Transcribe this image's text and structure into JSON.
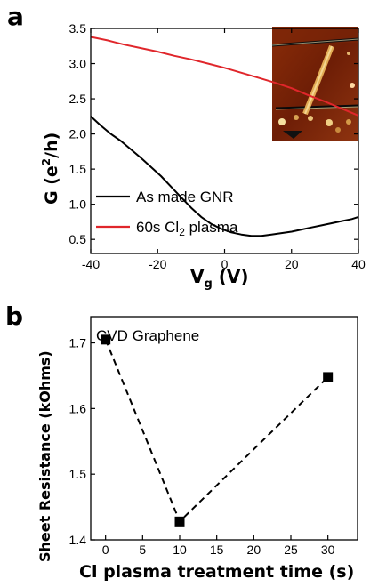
{
  "chart_data": [
    {
      "type": "line",
      "panel_label": "a",
      "xlabel": "V",
      "xlabel_sub": "g",
      "xlabel_unit": " (V)",
      "ylabel_main": "G (e",
      "ylabel_sup": "2",
      "ylabel_end": "/h)",
      "xlim": [
        -40,
        40
      ],
      "ylim": [
        0.3,
        3.5
      ],
      "xticks": [
        -40,
        -20,
        0,
        20,
        40
      ],
      "yticks": [
        0.5,
        1.0,
        1.5,
        2.0,
        2.5,
        3.0,
        3.5
      ],
      "grid": false,
      "legend_position": "bottom-left",
      "inset": "AFM image of graphene nanoribbon",
      "series": [
        {
          "name": "As made GNR",
          "color": "#000000",
          "x": [
            -40,
            -37,
            -34,
            -31,
            -28,
            -25,
            -22,
            -19,
            -16,
            -13,
            -10,
            -7,
            -4,
            -1,
            2,
            5,
            8,
            11,
            14,
            17,
            20,
            23,
            26,
            29,
            32,
            35,
            38,
            40
          ],
          "y": [
            2.25,
            2.12,
            2.0,
            1.9,
            1.78,
            1.66,
            1.53,
            1.4,
            1.25,
            1.1,
            0.95,
            0.82,
            0.72,
            0.65,
            0.6,
            0.57,
            0.55,
            0.55,
            0.57,
            0.59,
            0.61,
            0.64,
            0.67,
            0.7,
            0.73,
            0.76,
            0.79,
            0.82
          ]
        },
        {
          "name_main": "60s Cl",
          "name_sub": "2",
          "name_end": " plasma",
          "color": "#e0262b",
          "x": [
            -40,
            -35,
            -30,
            -25,
            -20,
            -15,
            -10,
            -5,
            0,
            5,
            10,
            15,
            20,
            25,
            30,
            35,
            40
          ],
          "y": [
            3.38,
            3.33,
            3.27,
            3.22,
            3.17,
            3.11,
            3.06,
            3.0,
            2.94,
            2.87,
            2.8,
            2.73,
            2.65,
            2.55,
            2.46,
            2.36,
            2.26
          ]
        }
      ]
    },
    {
      "type": "scatter",
      "panel_label": "b",
      "annotation": "CVD Graphene",
      "xlabel": "Cl plasma treatment time (s)",
      "ylabel": "Sheet Resistance (kOhms)",
      "xlim": [
        -2,
        34
      ],
      "ylim": [
        1.4,
        1.74
      ],
      "xticks": [
        0,
        5,
        10,
        15,
        20,
        25,
        30
      ],
      "yticks": [
        1.4,
        1.5,
        1.6,
        1.7
      ],
      "grid": false,
      "marker": "square",
      "line_style": "dashed",
      "x": [
        0,
        10,
        30
      ],
      "y": [
        1.705,
        1.428,
        1.648
      ]
    }
  ]
}
